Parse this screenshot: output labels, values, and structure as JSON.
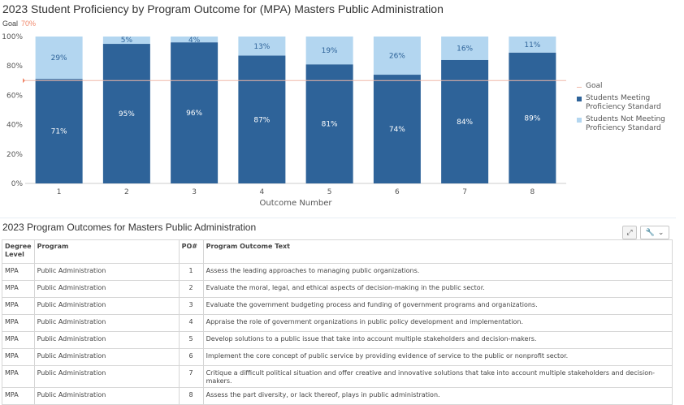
{
  "chart_title": "2023 Student Proficiency by Program Outcome for (MPA) Masters Public Administration",
  "goal_label": "Goal",
  "goal_value_text": "70%",
  "colors": {
    "meeting": "#2e6399",
    "not_meeting": "#b3d6f0",
    "goal": "#f0b8a8",
    "axis_text": "#555555"
  },
  "legend": {
    "goal": "Goal",
    "meeting": "Students Meeting Proficiency Standard",
    "not_meeting": "Students Not Meeting Proficiency Standard"
  },
  "chart_data": {
    "type": "bar",
    "stacked": true,
    "title": "2023 Student Proficiency by Program Outcome for (MPA) Masters Public Administration",
    "xlabel": "Outcome Number",
    "ylabel": "",
    "categories": [
      "1",
      "2",
      "3",
      "4",
      "5",
      "6",
      "7",
      "8"
    ],
    "series": [
      {
        "name": "Students Meeting Proficiency Standard",
        "values": [
          71,
          95,
          96,
          87,
          81,
          74,
          84,
          89
        ],
        "labels": [
          "71%",
          "95%",
          "96%",
          "87%",
          "81%",
          "74%",
          "84%",
          "89%"
        ]
      },
      {
        "name": "Students Not Meeting Proficiency Standard",
        "values": [
          29,
          5,
          4,
          13,
          19,
          26,
          16,
          11
        ],
        "labels": [
          "29%",
          "5%",
          "4%",
          "13%",
          "19%",
          "26%",
          "16%",
          "11%"
        ]
      }
    ],
    "goal": 70,
    "ylim": [
      0,
      100
    ],
    "yticks": [
      0,
      20,
      40,
      60,
      80,
      100
    ],
    "ytick_labels": [
      "0%",
      "20%",
      "40%",
      "60%",
      "80%",
      "100%"
    ],
    "grid": false,
    "legend_position": "right"
  },
  "table": {
    "title": "2023 Program Outcomes for Masters Public Administration",
    "headers": [
      "Degree Level",
      "Program",
      "PO#",
      "Program Outcome Text"
    ],
    "rows": [
      [
        "MPA",
        "Public Administration",
        "1",
        "Assess the leading approaches to managing public organizations."
      ],
      [
        "MPA",
        "Public Administration",
        "2",
        "Evaluate the moral, legal, and ethical aspects of decision-making in the public sector."
      ],
      [
        "MPA",
        "Public Administration",
        "3",
        "Evaluate the government budgeting process and funding of government programs and organizations."
      ],
      [
        "MPA",
        "Public Administration",
        "4",
        "Appraise the role of government organizations in public policy development and implementation."
      ],
      [
        "MPA",
        "Public Administration",
        "5",
        "Develop solutions to a public issue that take into account multiple stakeholders and decision-makers."
      ],
      [
        "MPA",
        "Public Administration",
        "6",
        "Implement the core concept of public service by providing evidence of service to the public or nonprofit sector."
      ],
      [
        "MPA",
        "Public Administration",
        "7",
        "Critique a difficult political situation and offer creative and innovative solutions that take into account multiple stakeholders and decision-makers."
      ],
      [
        "MPA",
        "Public Administration",
        "8",
        "Assess the part diversity, or lack thereof, plays in public administration."
      ]
    ]
  },
  "toolbar": {
    "expand_icon": "expand-icon",
    "settings_icon": "wrench-icon",
    "dropdown_icon": "chevron-down-icon"
  }
}
